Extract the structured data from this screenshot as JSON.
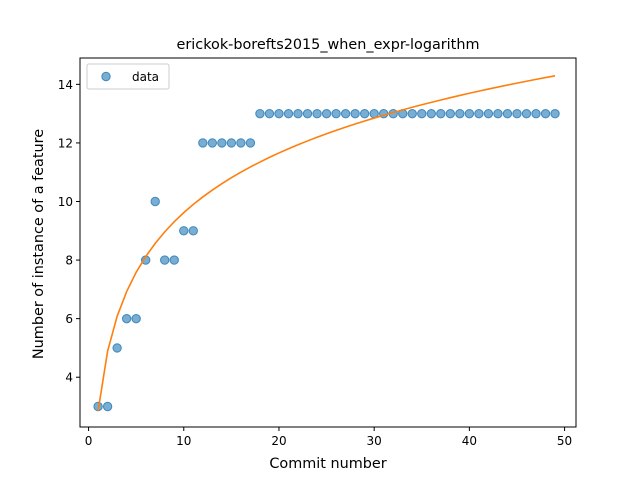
{
  "chart_data": {
    "type": "scatter",
    "title": "erickok-borefts2015_when_expr-logarithm",
    "xlabel": "Commit number",
    "ylabel": "Number of instance of a feature",
    "xlim": [
      -0.9,
      51.2
    ],
    "ylim": [
      2.3,
      14.9
    ],
    "xticks": [
      0,
      10,
      20,
      30,
      40,
      50
    ],
    "yticks": [
      4,
      6,
      8,
      10,
      12,
      14
    ],
    "legend": {
      "position": "top-left",
      "entries": [
        "data"
      ]
    },
    "grid": false,
    "colors": {
      "data": "#1f77b4",
      "fit": "#ff7f0e"
    },
    "series": [
      {
        "name": "data",
        "kind": "scatter",
        "x": [
          1,
          2,
          3,
          4,
          5,
          6,
          7,
          8,
          9,
          10,
          11,
          12,
          13,
          14,
          15,
          16,
          17,
          18,
          19,
          20,
          21,
          22,
          23,
          24,
          25,
          26,
          27,
          28,
          29,
          30,
          31,
          32,
          33,
          34,
          35,
          36,
          37,
          38,
          39,
          40,
          41,
          42,
          43,
          44,
          45,
          46,
          47,
          48,
          49
        ],
        "y": [
          3,
          3,
          5,
          6,
          6,
          8,
          10,
          8,
          8,
          9,
          9,
          12,
          12,
          12,
          12,
          12,
          12,
          13,
          13,
          13,
          13,
          13,
          13,
          13,
          13,
          13,
          13,
          13,
          13,
          13,
          13,
          13,
          13,
          13,
          13,
          13,
          13,
          13,
          13,
          13,
          13,
          13,
          13,
          13,
          13,
          13,
          13,
          13,
          13
        ]
      },
      {
        "kind": "line",
        "fit": "logarithmic",
        "a": 2.85,
        "b": 2.94,
        "x_range": [
          1,
          49
        ]
      }
    ]
  }
}
